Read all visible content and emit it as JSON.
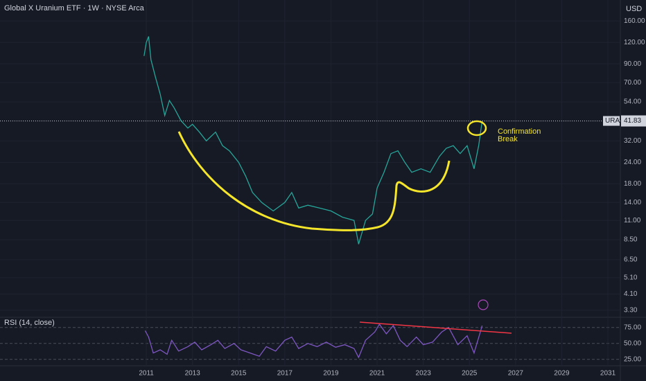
{
  "chart_data": [
    {
      "type": "line",
      "title": "Global X Uranium ETF · 1W · NYSE Arca",
      "currency": "USD",
      "symbol": "URA",
      "last_price": 41.83,
      "log_scale": true,
      "grid": true,
      "color": "#26a69a",
      "x": [
        2010.9,
        2011.0,
        2011.1,
        2011.2,
        2011.4,
        2011.6,
        2011.8,
        2012.0,
        2012.2,
        2012.5,
        2012.8,
        2013.0,
        2013.3,
        2013.6,
        2014.0,
        2014.3,
        2014.6,
        2015.0,
        2015.3,
        2015.6,
        2016.0,
        2016.5,
        2017.0,
        2017.3,
        2017.6,
        2018.0,
        2018.5,
        2019.0,
        2019.5,
        2020.0,
        2020.2,
        2020.5,
        2020.8,
        2021.0,
        2021.3,
        2021.6,
        2021.9,
        2022.2,
        2022.5,
        2022.9,
        2023.3,
        2023.7,
        2024.0,
        2024.3,
        2024.6,
        2024.9,
        2025.2,
        2025.4,
        2025.55
      ],
      "values": [
        100,
        120,
        130,
        95,
        75,
        60,
        45,
        55,
        50,
        42,
        38,
        40,
        36,
        32,
        36,
        30,
        28,
        24,
        20,
        16,
        14,
        12.5,
        14,
        16,
        13,
        13.5,
        13,
        12.5,
        11.5,
        11,
        8,
        11,
        12,
        17,
        21,
        27,
        28,
        24,
        21,
        22,
        21,
        26,
        29,
        30,
        27,
        30,
        22,
        30,
        41.83
      ],
      "xlim": [
        2004.66,
        2031.54
      ],
      "ylim": [
        3.0,
        212
      ],
      "yticks": [
        {
          "value": 160,
          "label": "160.00"
        },
        {
          "value": 120,
          "label": "120.00"
        },
        {
          "value": 90,
          "label": "90.00"
        },
        {
          "value": 70,
          "label": "70.00"
        },
        {
          "value": 54,
          "label": "54.00"
        },
        {
          "value": 32,
          "label": "32.00"
        },
        {
          "value": 24,
          "label": "24.00"
        },
        {
          "value": 18,
          "label": "18.00"
        },
        {
          "value": 14,
          "label": "14.00"
        },
        {
          "value": 11,
          "label": "11.00"
        },
        {
          "value": 8.5,
          "label": "8.50"
        },
        {
          "value": 6.5,
          "label": "6.50"
        },
        {
          "value": 5.1,
          "label": "5.10"
        },
        {
          "value": 4.1,
          "label": "4.10"
        },
        {
          "value": 3.3,
          "label": "3.30"
        }
      ],
      "annotation": [
        "Confirmation",
        "Break"
      ]
    },
    {
      "type": "line",
      "title": "RSI (14, close)",
      "grid": true,
      "color": "#7e57c2",
      "x": [
        2010.95,
        2011.1,
        2011.3,
        2011.6,
        2011.9,
        2012.1,
        2012.4,
        2012.8,
        2013.1,
        2013.4,
        2013.8,
        2014.1,
        2014.4,
        2014.8,
        2015.1,
        2015.5,
        2015.9,
        2016.2,
        2016.6,
        2017.0,
        2017.3,
        2017.6,
        2018.0,
        2018.4,
        2018.8,
        2019.2,
        2019.6,
        2020.0,
        2020.2,
        2020.5,
        2020.9,
        2021.1,
        2021.4,
        2021.7,
        2022.0,
        2022.3,
        2022.7,
        2023.0,
        2023.4,
        2023.8,
        2024.1,
        2024.5,
        2024.9,
        2025.2,
        2025.45,
        2025.55
      ],
      "values": [
        70,
        60,
        35,
        40,
        33,
        55,
        38,
        45,
        52,
        40,
        48,
        55,
        42,
        50,
        40,
        35,
        30,
        45,
        38,
        55,
        60,
        42,
        50,
        45,
        52,
        44,
        48,
        42,
        28,
        55,
        68,
        80,
        65,
        78,
        55,
        45,
        60,
        48,
        52,
        68,
        75,
        48,
        62,
        35,
        65,
        78
      ],
      "xlim": [
        2004.66,
        2031.54
      ],
      "ylim": [
        15,
        91
      ],
      "xticks": [
        2011,
        2013,
        2015,
        2017,
        2019,
        2021,
        2023,
        2025,
        2027,
        2029,
        2031
      ],
      "yticks": [
        {
          "value": 75,
          "label": "75.00"
        },
        {
          "value": 50,
          "label": "50.00"
        },
        {
          "value": 25,
          "label": "25.00"
        }
      ]
    }
  ]
}
